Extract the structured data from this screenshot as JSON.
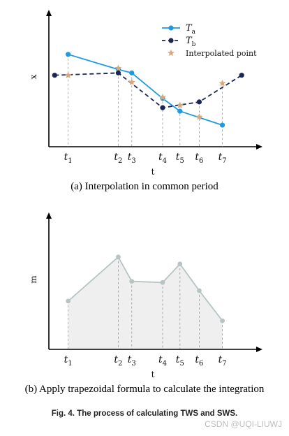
{
  "chart_data": [
    {
      "type": "line",
      "ylabel": "x",
      "xlabel": "t",
      "x_categories": [
        "t1",
        "t2",
        "t3",
        "t4",
        "t5",
        "t6",
        "t7"
      ],
      "x_tick_labels": [
        {
          "base": "t",
          "sub": "1"
        },
        {
          "base": "t",
          "sub": "2"
        },
        {
          "base": "t",
          "sub": "3"
        },
        {
          "base": "t",
          "sub": "4"
        },
        {
          "base": "t",
          "sub": "5"
        },
        {
          "base": "t",
          "sub": "6"
        },
        {
          "base": "t",
          "sub": "7"
        }
      ],
      "x_positions": [
        1.0,
        3.6,
        4.3,
        5.9,
        6.8,
        7.8,
        9.0
      ],
      "ylim": [
        0,
        10
      ],
      "xlim": [
        0,
        10.5
      ],
      "legend_position": "top-right",
      "legend": [
        {
          "name": "T_a",
          "base": "T",
          "sub": "a",
          "marker": "circle",
          "line": "solid",
          "color": "#1f9ae0"
        },
        {
          "name": "T_b",
          "base": "T",
          "sub": "b",
          "marker": "circle",
          "line": "dashed",
          "color": "#1a2654"
        },
        {
          "name": "Interpolated point",
          "base": "Interpolated point",
          "sub": "",
          "marker": "star",
          "line": "none",
          "color": "#d9a97c"
        }
      ],
      "series": [
        {
          "name": "T_a",
          "color": "#1f9ae0",
          "style": "solid",
          "points": [
            [
              1.0,
              7.0
            ],
            [
              3.6,
              5.7
            ],
            [
              4.3,
              5.4
            ],
            [
              5.9,
              3.2
            ],
            [
              6.8,
              2.1
            ],
            [
              9.0,
              0.9
            ]
          ]
        },
        {
          "name": "T_b",
          "color": "#1a2654",
          "style": "dashed",
          "points": [
            [
              0.3,
              5.2
            ],
            [
              3.6,
              5.4
            ],
            [
              5.9,
              2.4
            ],
            [
              7.8,
              2.9
            ],
            [
              10.0,
              5.2
            ]
          ]
        },
        {
          "name": "Interpolated point",
          "color": "#d9a97c",
          "style": "markers",
          "points": [
            [
              1.0,
              5.2
            ],
            [
              3.6,
              5.8
            ],
            [
              4.3,
              4.6
            ],
            [
              5.9,
              3.3
            ],
            [
              6.8,
              2.6
            ],
            [
              7.8,
              1.6
            ],
            [
              9.0,
              4.5
            ]
          ]
        }
      ],
      "dropline_x": [
        1.0,
        3.6,
        4.3,
        5.9,
        6.8,
        7.8,
        9.0
      ]
    },
    {
      "type": "area",
      "ylabel": "m",
      "xlabel": "t",
      "x_categories": [
        "t1",
        "t2",
        "t3",
        "t4",
        "t5",
        "t6",
        "t7"
      ],
      "x_tick_labels": [
        {
          "base": "t",
          "sub": "1"
        },
        {
          "base": "t",
          "sub": "2"
        },
        {
          "base": "t",
          "sub": "3"
        },
        {
          "base": "t",
          "sub": "4"
        },
        {
          "base": "t",
          "sub": "5"
        },
        {
          "base": "t",
          "sub": "6"
        },
        {
          "base": "t",
          "sub": "7"
        }
      ],
      "ylim": [
        0,
        10
      ],
      "xlim": [
        0,
        10.5
      ],
      "series": [
        {
          "name": "",
          "color": "#b8c4c4",
          "fill": "#efefef",
          "points": [
            [
              1.0,
              3.2
            ],
            [
              3.6,
              7.0
            ],
            [
              4.3,
              4.9
            ],
            [
              5.9,
              4.8
            ],
            [
              6.8,
              6.4
            ],
            [
              7.8,
              4.1
            ],
            [
              9.0,
              1.5
            ]
          ]
        }
      ]
    }
  ],
  "captions": {
    "panel_a": "(a) Interpolation in common period",
    "panel_b": "(b) Apply trapezoidal formula to calculate the integration",
    "figure": "Fig. 4.  The process of calculating TWS and SWS."
  },
  "watermark": "CSDN @UQI-LIUWJ"
}
